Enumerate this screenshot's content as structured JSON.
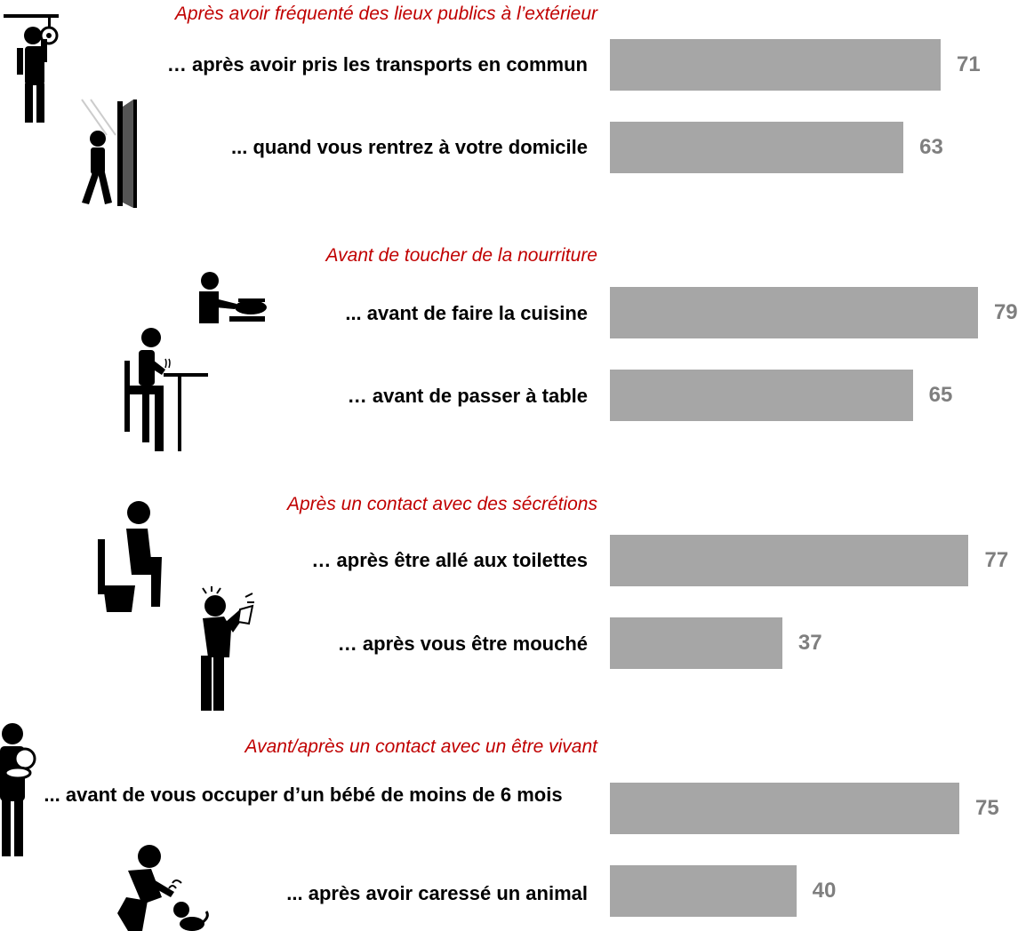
{
  "chart_data": {
    "type": "bar",
    "orientation": "horizontal",
    "groups": [
      {
        "title": "Après avoir fréquenté des lieux publics à l’extérieur",
        "items": [
          {
            "label": "… après avoir pris les transports en commun",
            "value": 71,
            "icon": "public-transport-person-icon"
          },
          {
            "label": "... quand vous rentrez à votre domicile",
            "value": 63,
            "icon": "person-entering-door-icon"
          }
        ]
      },
      {
        "title": "Avant de toucher de la nourriture",
        "items": [
          {
            "label": "... avant de faire la cuisine",
            "value": 79,
            "icon": "person-cooking-icon"
          },
          {
            "label": "… avant de passer à table",
            "value": 65,
            "icon": "person-at-table-icon"
          }
        ]
      },
      {
        "title": "Après un contact avec des sécrétions",
        "items": [
          {
            "label": "… après être allé aux toilettes",
            "value": 77,
            "icon": "person-on-toilet-icon"
          },
          {
            "label": "… après vous être mouché",
            "value": 37,
            "icon": "person-blowing-nose-icon"
          }
        ]
      },
      {
        "title": "Avant/après un contact avec un être vivant",
        "items": [
          {
            "label": "... avant de vous occuper d’un bébé de moins de 6 mois",
            "value": 75,
            "icon": "person-holding-baby-icon"
          },
          {
            "label": "... après avoir caressé un animal",
            "value": 40,
            "icon": "person-petting-dog-icon"
          }
        ]
      }
    ],
    "bar_color": "#a6a6a6",
    "value_color": "#7f7f7f",
    "title_color": "#c00000",
    "legend": "none",
    "grid": false
  }
}
